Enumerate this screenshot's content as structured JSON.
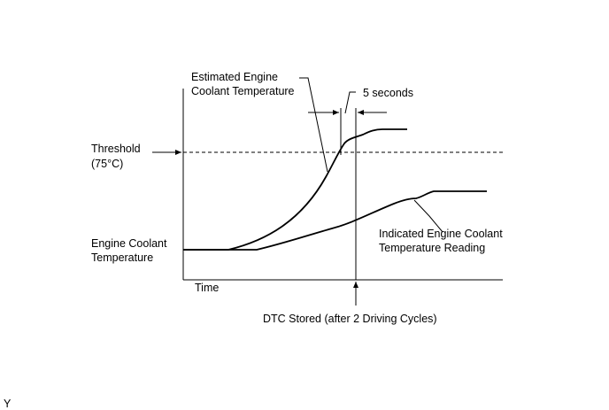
{
  "diagram": {
    "labels": {
      "estimated_line1": "Estimated Engine",
      "estimated_line2": "Coolant Temperature",
      "five_seconds": "5 seconds",
      "threshold_line1": "Threshold",
      "threshold_line2": "(75°C)",
      "y_axis_line1": "Engine Coolant",
      "y_axis_line2": "Temperature",
      "x_axis": "Time",
      "indicated_line1": "Indicated Engine Coolant",
      "indicated_line2": "Temperature Reading",
      "dtc_stored": "DTC Stored (after 2 Driving Cycles)",
      "corner_mark": "Y"
    }
  }
}
